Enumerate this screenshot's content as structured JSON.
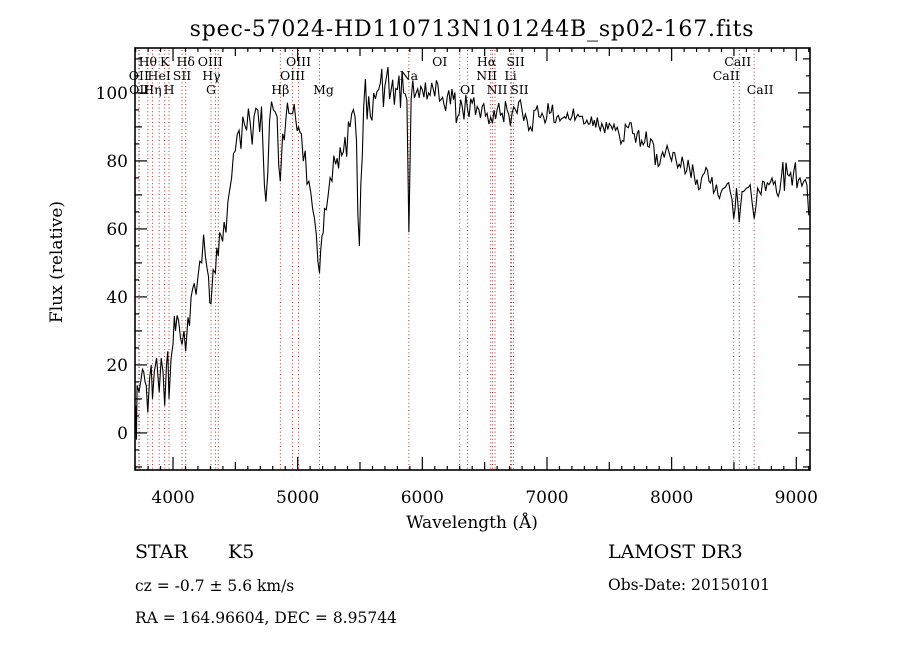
{
  "chart_data": {
    "type": "line",
    "title": "spec-57024-HD110713N101244B_sp02-167.fits",
    "xlabel": "Wavelength (Å)",
    "ylabel": "Flux (relative)",
    "xlim": [
      3695,
      9110
    ],
    "ylim": [
      -10.9,
      113.2
    ],
    "xticks": [
      4000,
      5000,
      6000,
      7000,
      8000,
      9000
    ],
    "yticks": [
      0,
      20,
      40,
      60,
      80,
      100
    ],
    "grid": false,
    "legend": "none",
    "line_color": "#000000",
    "marker_line_color": "#a03434",
    "noise_seed": 42,
    "spectral_lines": [
      {
        "wavelength": 3726,
        "label": "OII",
        "row": 2,
        "dx": 0
      },
      {
        "wavelength": 3729,
        "label": "OII",
        "row": 3,
        "dx": 0
      },
      {
        "wavelength": 3798,
        "label": "Hθ",
        "row": 1,
        "dx": 0
      },
      {
        "wavelength": 3835,
        "label": "Hη",
        "row": 3,
        "dx": 0
      },
      {
        "wavelength": 3889,
        "label": "HeI",
        "row": 2,
        "dx": 0
      },
      {
        "wavelength": 3933,
        "label": "K",
        "row": 1,
        "dx": 0
      },
      {
        "wavelength": 3968,
        "label": "H",
        "row": 3,
        "dx": 0
      },
      {
        "wavelength": 4072,
        "label": "SII",
        "row": 2,
        "dx": 0
      },
      {
        "wavelength": 4102,
        "label": "Hδ",
        "row": 1,
        "dx": 0
      },
      {
        "wavelength": 4305,
        "label": "G",
        "row": 3,
        "dx": 0
      },
      {
        "wavelength": 4340,
        "label": "Hγ",
        "row": 2,
        "dx": -4
      },
      {
        "wavelength": 4363,
        "label": "OIII",
        "row": 1,
        "dx": -8
      },
      {
        "wavelength": 4861,
        "label": "Hβ",
        "row": 3,
        "dx": 0
      },
      {
        "wavelength": 4959,
        "label": "OIII",
        "row": 2,
        "dx": 0
      },
      {
        "wavelength": 5007,
        "label": "OIII",
        "row": 1,
        "dx": 0
      },
      {
        "wavelength": 5175,
        "label": "Mg",
        "row": 3,
        "dx": 4
      },
      {
        "wavelength": 5892,
        "label": "Na",
        "row": 2,
        "dx": 0
      },
      {
        "wavelength": 6300,
        "label": "OI",
        "row": 1,
        "dx": -20
      },
      {
        "wavelength": 6363,
        "label": "OI",
        "row": 3,
        "dx": 0
      },
      {
        "wavelength": 6548,
        "label": "NII",
        "row": 2,
        "dx": -4
      },
      {
        "wavelength": 6563,
        "label": "Hα",
        "row": 1,
        "dx": -6
      },
      {
        "wavelength": 6583,
        "label": "NII",
        "row": 3,
        "dx": 2
      },
      {
        "wavelength": 6708,
        "label": "Li",
        "row": 2,
        "dx": 0
      },
      {
        "wavelength": 6716,
        "label": "SII",
        "row": 1,
        "dx": 4
      },
      {
        "wavelength": 6731,
        "label": "SII",
        "row": 3,
        "dx": 6
      },
      {
        "wavelength": 8498,
        "label": "CaII",
        "row": 1,
        "dx": 4
      },
      {
        "wavelength": 8542,
        "label": "CaII",
        "row": 2,
        "dx": -13
      },
      {
        "wavelength": 8662,
        "label": "CaII",
        "row": 3,
        "dx": 6
      }
    ],
    "spectrum_anchors": [
      [
        3700,
        8,
        9
      ],
      [
        3706,
        -2,
        4
      ],
      [
        3712,
        14,
        8
      ],
      [
        3727,
        12,
        7
      ],
      [
        3745,
        16,
        8
      ],
      [
        3765,
        18,
        9
      ],
      [
        3785,
        14,
        8
      ],
      [
        3798,
        6,
        4
      ],
      [
        3812,
        16,
        8
      ],
      [
        3825,
        20,
        8
      ],
      [
        3835,
        10,
        5
      ],
      [
        3850,
        18,
        8
      ],
      [
        3868,
        22,
        9
      ],
      [
        3880,
        16,
        8
      ],
      [
        3889,
        12,
        5
      ],
      [
        3905,
        22,
        8
      ],
      [
        3920,
        18,
        8
      ],
      [
        3933,
        8,
        4
      ],
      [
        3948,
        20,
        7
      ],
      [
        3958,
        24,
        7
      ],
      [
        3968,
        10,
        4
      ],
      [
        3985,
        22,
        8
      ],
      [
        4000,
        26,
        9
      ],
      [
        4020,
        30,
        9
      ],
      [
        4045,
        33,
        9
      ],
      [
        4060,
        28,
        8
      ],
      [
        4072,
        26,
        6
      ],
      [
        4088,
        30,
        7
      ],
      [
        4102,
        24,
        6
      ],
      [
        4120,
        34,
        8
      ],
      [
        4145,
        40,
        9
      ],
      [
        4170,
        44,
        9
      ],
      [
        4200,
        46,
        10
      ],
      [
        4230,
        50,
        10
      ],
      [
        4260,
        52,
        10
      ],
      [
        4285,
        46,
        9
      ],
      [
        4305,
        38,
        6
      ],
      [
        4322,
        48,
        8
      ],
      [
        4340,
        47,
        6
      ],
      [
        4363,
        52,
        7
      ],
      [
        4385,
        58,
        9
      ],
      [
        4410,
        62,
        10
      ],
      [
        4440,
        68,
        10
      ],
      [
        4470,
        75,
        9
      ],
      [
        4500,
        83,
        8
      ],
      [
        4530,
        89,
        8
      ],
      [
        4560,
        93,
        7
      ],
      [
        4590,
        89,
        8
      ],
      [
        4620,
        91,
        8
      ],
      [
        4650,
        93,
        8
      ],
      [
        4680,
        95,
        8
      ],
      [
        4710,
        96,
        7
      ],
      [
        4745,
        68,
        4
      ],
      [
        4775,
        92,
        7
      ],
      [
        4805,
        95,
        7
      ],
      [
        4835,
        93,
        6
      ],
      [
        4861,
        74,
        4
      ],
      [
        4880,
        88,
        6
      ],
      [
        4905,
        92,
        6
      ],
      [
        4930,
        94,
        6
      ],
      [
        4960,
        94,
        6
      ],
      [
        4985,
        92,
        6
      ],
      [
        5007,
        90,
        6
      ],
      [
        5030,
        88,
        6
      ],
      [
        5060,
        83,
        6
      ],
      [
        5090,
        74,
        6
      ],
      [
        5120,
        66,
        6
      ],
      [
        5150,
        58,
        5
      ],
      [
        5175,
        47,
        3
      ],
      [
        5195,
        58,
        5
      ],
      [
        5215,
        66,
        6
      ],
      [
        5245,
        70,
        6
      ],
      [
        5275,
        74,
        7
      ],
      [
        5305,
        79,
        7
      ],
      [
        5340,
        84,
        8
      ],
      [
        5380,
        87,
        8
      ],
      [
        5420,
        90,
        8
      ],
      [
        5460,
        93,
        8
      ],
      [
        5495,
        55,
        3
      ],
      [
        5530,
        96,
        8
      ],
      [
        5570,
        99,
        8
      ],
      [
        5610,
        100,
        8
      ],
      [
        5650,
        101,
        7
      ],
      [
        5700,
        102,
        7
      ],
      [
        5750,
        101,
        7
      ],
      [
        5800,
        101,
        7
      ],
      [
        5850,
        100,
        6
      ],
      [
        5876,
        98,
        5
      ],
      [
        5892,
        59,
        2
      ],
      [
        5910,
        98,
        6
      ],
      [
        5950,
        100,
        6
      ],
      [
        6000,
        101,
        6
      ],
      [
        6050,
        100,
        5
      ],
      [
        6100,
        99,
        5
      ],
      [
        6150,
        98,
        5
      ],
      [
        6200,
        99,
        5
      ],
      [
        6250,
        98,
        5
      ],
      [
        6283,
        93,
        4
      ],
      [
        6320,
        96,
        5
      ],
      [
        6363,
        95,
        4
      ],
      [
        6400,
        97,
        5
      ],
      [
        6440,
        96,
        5
      ],
      [
        6480,
        96,
        5
      ],
      [
        6520,
        94,
        4
      ],
      [
        6563,
        91,
        3
      ],
      [
        6600,
        95,
        4
      ],
      [
        6640,
        94,
        4
      ],
      [
        6680,
        95,
        4
      ],
      [
        6720,
        94,
        4
      ],
      [
        6760,
        94,
        4
      ],
      [
        6800,
        95,
        4
      ],
      [
        6867,
        90,
        3
      ],
      [
        6910,
        95,
        4
      ],
      [
        6960,
        94,
        3
      ],
      [
        7020,
        94,
        3
      ],
      [
        7080,
        93,
        3
      ],
      [
        7140,
        93,
        3
      ],
      [
        7200,
        93,
        3
      ],
      [
        7260,
        93,
        3
      ],
      [
        7320,
        92,
        3
      ],
      [
        7380,
        92,
        3
      ],
      [
        7440,
        91,
        3
      ],
      [
        7500,
        91,
        3
      ],
      [
        7550,
        89,
        3
      ],
      [
        7593,
        85,
        2
      ],
      [
        7640,
        90,
        3
      ],
      [
        7700,
        88,
        3
      ],
      [
        7760,
        86,
        4
      ],
      [
        7820,
        84,
        4
      ],
      [
        7880,
        82,
        4
      ],
      [
        7940,
        81,
        4
      ],
      [
        8000,
        80,
        4
      ],
      [
        8060,
        79,
        4
      ],
      [
        8120,
        77,
        4
      ],
      [
        8180,
        76,
        4
      ],
      [
        8240,
        75,
        4
      ],
      [
        8300,
        74,
        4
      ],
      [
        8360,
        73,
        4
      ],
      [
        8420,
        72,
        4
      ],
      [
        8470,
        71,
        4
      ],
      [
        8498,
        63,
        2
      ],
      [
        8520,
        72,
        3
      ],
      [
        8542,
        62,
        2
      ],
      [
        8565,
        71,
        3
      ],
      [
        8600,
        72,
        4
      ],
      [
        8630,
        73,
        4
      ],
      [
        8662,
        63,
        2
      ],
      [
        8690,
        72,
        4
      ],
      [
        8730,
        74,
        5
      ],
      [
        8780,
        73,
        5
      ],
      [
        8830,
        74,
        5
      ],
      [
        8880,
        75,
        5
      ],
      [
        8930,
        76,
        5
      ],
      [
        8980,
        77,
        5
      ],
      [
        9030,
        75,
        4
      ],
      [
        9060,
        74,
        3
      ],
      [
        9085,
        73,
        2
      ],
      [
        9100,
        64,
        1
      ]
    ]
  },
  "footer": {
    "classification": "STAR",
    "subclass": "K5",
    "cz_line": "cz = -0.7 ± 5.6 km/s",
    "radec_line": "RA = 164.96604, DEC =  8.95744",
    "survey": "LAMOST DR3",
    "obs_date_line": "Obs-Date: 20150101"
  }
}
